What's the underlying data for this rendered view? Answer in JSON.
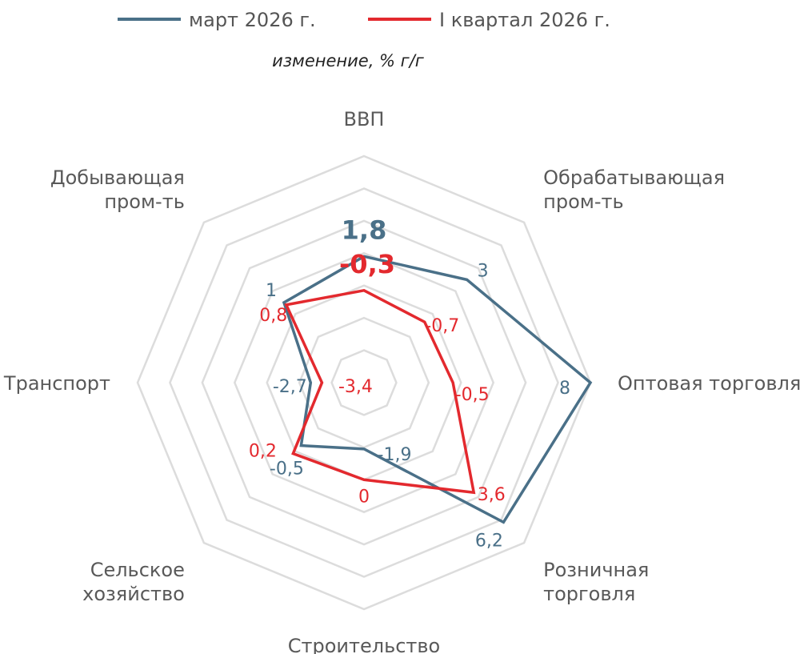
{
  "legend": {
    "series_1": "март 2026 г.",
    "series_2": "I квартал 2026 г."
  },
  "subtitle": "изменение, % г/г",
  "chart_data": {
    "type": "radar",
    "subtitle": "изменение, % г/г",
    "categories": [
      "ВВП",
      "Обрабатывающая пром-ть",
      "Оптовая торговля",
      "Розничная торговля",
      "Строительство",
      "Сельское хозяйство",
      "Транспорт",
      "Добывающая пром-ть"
    ],
    "category_display": [
      [
        "ВВП"
      ],
      [
        "Обрабатывающая",
        "пром-ть"
      ],
      [
        "Оптовая торговля"
      ],
      [
        "Розничная",
        "торговля"
      ],
      [
        "Строительство"
      ],
      [
        "Сельское",
        "хозяйство"
      ],
      [
        "Транспорт"
      ],
      [
        "Добывающая",
        "пром-ть"
      ]
    ],
    "series": [
      {
        "name": "март 2026 г.",
        "color": "#4a7088",
        "values": [
          1.8,
          3,
          8,
          6.2,
          -1.9,
          -0.5,
          -2.7,
          1
        ],
        "labels": [
          "1,8",
          "3",
          "8",
          "6,2",
          "-1,9",
          "-0,5",
          "-2,7",
          "1"
        ]
      },
      {
        "name": "I квартал 2026 г.",
        "color": "#e3292e",
        "values": [
          -0.3,
          -0.7,
          -0.5,
          3.6,
          0,
          0.2,
          -3.4,
          0.8
        ],
        "labels": [
          "-0,3",
          "-0,7",
          "-0,5",
          "3,6",
          "0",
          "0,2",
          "-3,4",
          "0,8"
        ]
      }
    ],
    "rlim": [
      -6,
      8
    ],
    "grid": true,
    "legend_position": "top",
    "grid_color": "#dcdcdc"
  }
}
